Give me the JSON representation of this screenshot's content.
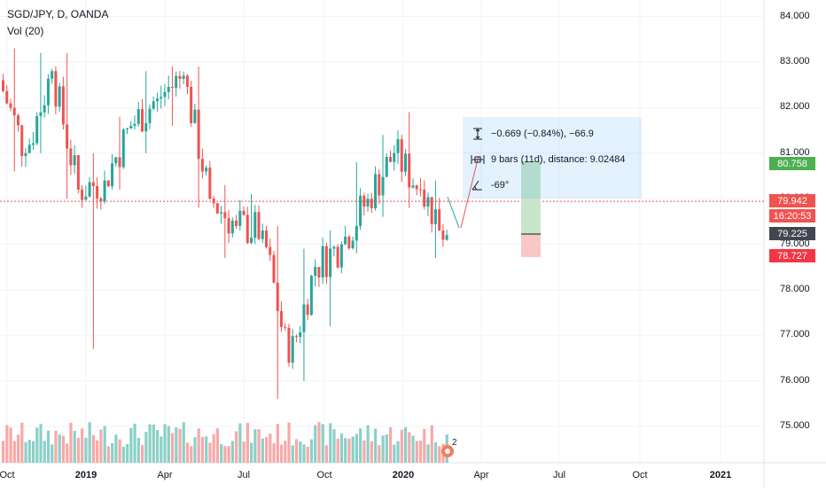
{
  "header": {
    "symbol_line": "SGD/JPY, D, OANDA",
    "volume_line": "Vol (20)"
  },
  "colors": {
    "up": "#26a69a",
    "down": "#ef5350",
    "up_volume": "#8bd0c8",
    "down_volume": "#f7a9a7",
    "grid": "#f0f3fa",
    "price_line": "#ef5350",
    "target_fill": "#c8e6c9",
    "stop_fill": "#f8c8c8",
    "measure_fill": "#e3f2fd"
  },
  "measure": {
    "price_change": "−0.669 (−0.84%), −66.9",
    "bars_distance": "9 bars (11d), distance: 9.02484",
    "angle": "-69°"
  },
  "price_tags": [
    {
      "label": "80.758",
      "color": "#4caf50"
    },
    {
      "label": "79.942",
      "color": "#ef5350"
    },
    {
      "label": "16:20:53",
      "color": "#ef5350"
    },
    {
      "label": "79.225",
      "color": "#434651"
    },
    {
      "label": "78.727",
      "color": "#f23645"
    }
  ],
  "badge": {
    "label": "2"
  },
  "chart_data": {
    "type": "candlestick",
    "title": "SGD/JPY, D, OANDA",
    "y_axis": {
      "ticks": [
        "84.000",
        "83.000",
        "82.000",
        "81.000",
        "80.000",
        "79.000",
        "78.000",
        "77.000",
        "76.000",
        "75.000"
      ],
      "ylim": [
        74.2,
        84.2
      ]
    },
    "x_axis": {
      "ticks": [
        "Oct",
        "2019",
        "Apr",
        "Jul",
        "Oct",
        "2020",
        "Apr",
        "Jul",
        "Oct",
        "2021"
      ]
    },
    "current_price": 79.942,
    "series": [
      {
        "month": "Oct 2018",
        "open": 82.6,
        "high": 83.3,
        "low": 80.6,
        "close": 81.0
      },
      {
        "month": "Nov 2018",
        "open": 81.0,
        "high": 83.2,
        "low": 81.0,
        "close": 82.8
      },
      {
        "month": "Dec 2018",
        "open": 82.8,
        "high": 83.2,
        "low": 80.0,
        "close": 80.2
      },
      {
        "month": "Jan 2019",
        "open": 80.2,
        "high": 81.0,
        "low": 76.7,
        "close": 80.4
      },
      {
        "month": "Feb 2019",
        "open": 80.4,
        "high": 81.8,
        "low": 80.2,
        "close": 81.6
      },
      {
        "month": "Mar 2019",
        "open": 81.6,
        "high": 82.8,
        "low": 81.0,
        "close": 82.2
      },
      {
        "month": "Apr 2019",
        "open": 82.2,
        "high": 82.9,
        "low": 81.6,
        "close": 82.7
      },
      {
        "month": "May 2019",
        "open": 82.7,
        "high": 82.9,
        "low": 79.8,
        "close": 80.0
      },
      {
        "month": "Jun 2019",
        "open": 80.0,
        "high": 80.3,
        "low": 78.7,
        "close": 79.4
      },
      {
        "month": "Jul 2019",
        "open": 79.4,
        "high": 80.1,
        "low": 79.0,
        "close": 79.3
      },
      {
        "month": "Aug 2019",
        "open": 79.3,
        "high": 79.4,
        "low": 75.6,
        "close": 76.4
      },
      {
        "month": "Sep 2019",
        "open": 76.4,
        "high": 78.9,
        "low": 76.0,
        "close": 78.5
      },
      {
        "month": "Oct 2019",
        "open": 78.5,
        "high": 79.3,
        "low": 77.2,
        "close": 79.0
      },
      {
        "month": "Nov 2019",
        "open": 79.0,
        "high": 80.8,
        "low": 78.8,
        "close": 80.0
      },
      {
        "month": "Dec 2019",
        "open": 80.0,
        "high": 81.4,
        "low": 79.6,
        "close": 81.0
      },
      {
        "month": "Jan 2020",
        "open": 81.0,
        "high": 81.9,
        "low": 79.8,
        "close": 80.2
      },
      {
        "month": "Feb 2020",
        "open": 80.2,
        "high": 80.4,
        "low": 78.7,
        "close": 79.2
      }
    ]
  }
}
